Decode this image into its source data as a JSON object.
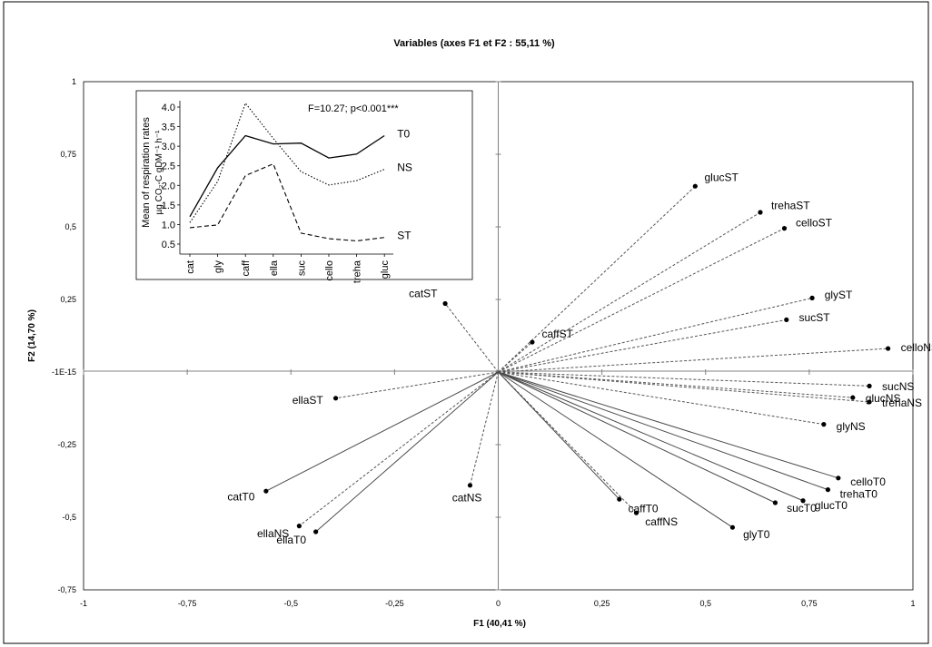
{
  "chart_data": [
    {
      "type": "scatter",
      "subtype": "pca-correlation-biplot",
      "title": "Variables (axes F1 et F2 : 55,11 %)",
      "xlabel": "F1 (40,41 %)",
      "ylabel": "F2 (14,70 %)",
      "xlim": [
        -1,
        1
      ],
      "ylim": [
        -0.75,
        1
      ],
      "x_ticks": [
        {
          "value": -1,
          "label": "-1"
        },
        {
          "value": -0.75,
          "label": "-0,75"
        },
        {
          "value": -0.5,
          "label": "-0,5"
        },
        {
          "value": -0.25,
          "label": "-0,25"
        },
        {
          "value": 0,
          "label": "0"
        },
        {
          "value": 0.25,
          "label": "0,25"
        },
        {
          "value": 0.5,
          "label": "0,5"
        },
        {
          "value": 0.75,
          "label": "0,75"
        },
        {
          "value": 1,
          "label": "1"
        }
      ],
      "y_ticks": [
        {
          "value": -0.75,
          "label": "-0,75"
        },
        {
          "value": -0.5,
          "label": "-0,5"
        },
        {
          "value": -0.25,
          "label": "-0,25"
        },
        {
          "value": 0,
          "label": "-1E-15"
        },
        {
          "value": 0.25,
          "label": "0,25"
        },
        {
          "value": 0.5,
          "label": "0,5"
        },
        {
          "value": 0.75,
          "label": "0,75"
        },
        {
          "value": 1,
          "label": "1"
        }
      ],
      "grid": false,
      "line_styles": {
        "T0": "solid",
        "NS": "dashed",
        "ST": "dashed"
      },
      "points": [
        {
          "label": "glucST",
          "x": 0.475,
          "y": 0.64,
          "group": "ST"
        },
        {
          "label": "trehaST",
          "x": 0.632,
          "y": 0.55,
          "group": "ST"
        },
        {
          "label": "celloST",
          "x": 0.69,
          "y": 0.495,
          "group": "ST"
        },
        {
          "label": "glyST",
          "x": 0.757,
          "y": 0.255,
          "group": "ST"
        },
        {
          "label": "sucST",
          "x": 0.695,
          "y": 0.18,
          "group": "ST"
        },
        {
          "label": "caffST",
          "x": 0.082,
          "y": 0.103,
          "group": "ST"
        },
        {
          "label": "catST",
          "x": -0.128,
          "y": 0.236,
          "group": "ST"
        },
        {
          "label": "ellaST",
          "x": -0.392,
          "y": -0.09,
          "group": "ST"
        },
        {
          "label": "celloNS",
          "x": 0.94,
          "y": 0.081,
          "group": "NS"
        },
        {
          "label": "sucNS",
          "x": 0.895,
          "y": -0.048,
          "group": "NS"
        },
        {
          "label": "glucNS",
          "x": 0.855,
          "y": -0.088,
          "group": "NS"
        },
        {
          "label": "trehaNS",
          "x": 0.895,
          "y": -0.103,
          "group": "NS"
        },
        {
          "label": "glyNS",
          "x": 0.785,
          "y": -0.18,
          "group": "NS"
        },
        {
          "label": "caffNS",
          "x": 0.333,
          "y": -0.485,
          "group": "NS"
        },
        {
          "label": "catNS",
          "x": -0.068,
          "y": -0.39,
          "group": "NS"
        },
        {
          "label": "ellaNS",
          "x": -0.48,
          "y": -0.53,
          "group": "NS"
        },
        {
          "label": "celloT0",
          "x": 0.82,
          "y": -0.365,
          "group": "T0"
        },
        {
          "label": "trehaT0",
          "x": 0.795,
          "y": -0.405,
          "group": "T0"
        },
        {
          "label": "glucT0",
          "x": 0.735,
          "y": -0.443,
          "group": "T0"
        },
        {
          "label": "sucT0",
          "x": 0.668,
          "y": -0.45,
          "group": "T0"
        },
        {
          "label": "glyT0",
          "x": 0.565,
          "y": -0.535,
          "group": "T0"
        },
        {
          "label": "caffT0",
          "x": 0.292,
          "y": -0.438,
          "group": "T0"
        },
        {
          "label": "catT0",
          "x": -0.56,
          "y": -0.41,
          "group": "T0"
        },
        {
          "label": "ellaT0",
          "x": -0.44,
          "y": -0.55,
          "group": "T0"
        }
      ]
    },
    {
      "type": "line",
      "ylabel": "Mean of respiration rates",
      "ylabel_unit": "µg CO₂-C gDM⁻¹ h⁻¹",
      "annotation": "F=10.27; p<0.001***",
      "categories": [
        "cat",
        "gly",
        "caff",
        "ella",
        "suc",
        "cello",
        "treha",
        "gluc"
      ],
      "ylim": [
        0.5,
        4.0
      ],
      "y_ticks": [
        "0.5",
        "1.0",
        "1.5",
        "2.0",
        "2.5",
        "3.0",
        "3.5",
        "4.0"
      ],
      "grid": false,
      "series": [
        {
          "name": "T0",
          "style": "solid",
          "values": [
            1.2,
            2.45,
            3.27,
            3.06,
            3.08,
            2.7,
            2.8,
            3.27
          ]
        },
        {
          "name": "NS",
          "style": "dotted",
          "values": [
            1.05,
            2.1,
            4.1,
            3.2,
            2.35,
            2.01,
            2.12,
            2.41
          ]
        },
        {
          "name": "ST",
          "style": "dashed",
          "values": [
            0.92,
            0.99,
            2.25,
            2.55,
            0.78,
            0.64,
            0.58,
            0.67
          ]
        }
      ]
    }
  ]
}
